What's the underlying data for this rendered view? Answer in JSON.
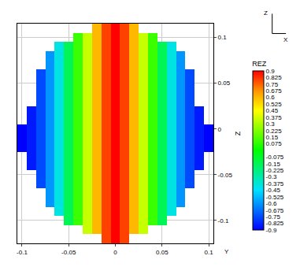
{
  "chart_data": {
    "type": "heatmap",
    "x": [
      -0.1,
      -0.09,
      -0.08,
      -0.07,
      -0.06,
      -0.05,
      -0.04,
      -0.03,
      -0.02,
      -0.01,
      0,
      0.01,
      0.02,
      0.03,
      0.04,
      0.05,
      0.06,
      0.07,
      0.08,
      0.09,
      0.1
    ],
    "y": [
      -0.12,
      -0.11,
      -0.1,
      -0.09,
      -0.08,
      -0.07,
      -0.06,
      -0.05,
      -0.04,
      -0.03,
      -0.02,
      -0.01,
      0,
      0.01,
      0.02,
      0.03,
      0.04,
      0.05,
      0.06,
      0.07,
      0.08,
      0.09,
      0.1,
      0.11
    ],
    "z": [
      [
        null,
        null,
        null,
        null,
        null,
        null,
        null,
        null,
        null,
        0.8,
        0.9,
        0.8,
        null,
        null,
        null,
        null,
        null,
        null,
        null,
        null,
        null
      ],
      [
        null,
        null,
        null,
        null,
        null,
        null,
        null,
        0.35,
        0.6,
        0.8,
        0.9,
        0.8,
        0.6,
        0.35,
        null,
        null,
        null,
        null,
        null,
        null,
        null
      ],
      [
        null,
        null,
        null,
        null,
        null,
        -0.15,
        0.1,
        0.35,
        0.6,
        0.8,
        0.9,
        0.8,
        0.6,
        0.35,
        0.1,
        -0.15,
        null,
        null,
        null,
        null,
        null
      ],
      [
        null,
        null,
        null,
        null,
        -0.4,
        -0.15,
        0.1,
        0.35,
        0.6,
        0.8,
        0.9,
        0.8,
        0.6,
        0.35,
        0.1,
        -0.15,
        -0.4,
        null,
        null,
        null,
        null
      ],
      [
        null,
        null,
        null,
        -0.6,
        -0.4,
        -0.15,
        0.1,
        0.35,
        0.6,
        0.8,
        0.9,
        0.8,
        0.6,
        0.35,
        0.1,
        -0.15,
        -0.4,
        -0.6,
        null,
        null,
        null
      ],
      [
        null,
        null,
        null,
        -0.6,
        -0.4,
        -0.15,
        0.1,
        0.35,
        0.6,
        0.8,
        0.9,
        0.8,
        0.6,
        0.35,
        0.1,
        -0.15,
        -0.4,
        -0.6,
        null,
        null,
        null
      ],
      [
        null,
        null,
        -0.75,
        -0.6,
        -0.4,
        -0.15,
        0.1,
        0.35,
        0.6,
        0.8,
        0.9,
        0.8,
        0.6,
        0.35,
        0.1,
        -0.15,
        -0.4,
        -0.6,
        -0.75,
        null,
        null
      ],
      [
        null,
        null,
        -0.75,
        -0.6,
        -0.4,
        -0.15,
        0.1,
        0.35,
        0.6,
        0.8,
        0.9,
        0.8,
        0.6,
        0.35,
        0.1,
        -0.15,
        -0.4,
        -0.6,
        -0.75,
        null,
        null
      ],
      [
        null,
        -0.85,
        -0.75,
        -0.6,
        -0.4,
        -0.15,
        0.1,
        0.35,
        0.6,
        0.8,
        0.9,
        0.8,
        0.6,
        0.35,
        0.1,
        -0.15,
        -0.4,
        -0.6,
        -0.75,
        -0.85,
        null
      ],
      [
        null,
        -0.85,
        -0.75,
        -0.6,
        -0.4,
        -0.15,
        0.1,
        0.35,
        0.6,
        0.8,
        0.9,
        0.8,
        0.6,
        0.35,
        0.1,
        -0.15,
        -0.4,
        -0.6,
        -0.75,
        -0.85,
        null
      ],
      [
        -0.9,
        -0.85,
        -0.75,
        -0.6,
        -0.4,
        -0.15,
        0.1,
        0.35,
        0.6,
        0.8,
        0.9,
        0.8,
        0.6,
        0.35,
        0.1,
        -0.15,
        -0.4,
        -0.6,
        -0.75,
        -0.85,
        -0.9
      ],
      [
        -0.9,
        -0.85,
        -0.75,
        -0.6,
        -0.4,
        -0.15,
        0.1,
        0.35,
        0.6,
        0.8,
        0.9,
        0.8,
        0.6,
        0.35,
        0.1,
        -0.15,
        -0.4,
        -0.6,
        -0.75,
        -0.85,
        -0.9
      ],
      [
        -0.9,
        -0.85,
        -0.75,
        -0.6,
        -0.4,
        -0.15,
        0.1,
        0.35,
        0.6,
        0.8,
        0.9,
        0.8,
        0.6,
        0.35,
        0.1,
        -0.15,
        -0.4,
        -0.6,
        -0.75,
        -0.85,
        -0.9
      ],
      [
        null,
        -0.85,
        -0.75,
        -0.6,
        -0.4,
        -0.15,
        0.1,
        0.35,
        0.6,
        0.8,
        0.9,
        0.8,
        0.6,
        0.35,
        0.1,
        -0.15,
        -0.4,
        -0.6,
        -0.75,
        -0.85,
        null
      ],
      [
        null,
        -0.85,
        -0.75,
        -0.6,
        -0.4,
        -0.15,
        0.1,
        0.35,
        0.6,
        0.8,
        0.9,
        0.8,
        0.6,
        0.35,
        0.1,
        -0.15,
        -0.4,
        -0.6,
        -0.75,
        -0.85,
        null
      ],
      [
        null,
        null,
        -0.75,
        -0.6,
        -0.4,
        -0.15,
        0.1,
        0.35,
        0.6,
        0.8,
        0.9,
        0.8,
        0.6,
        0.35,
        0.1,
        -0.15,
        -0.4,
        -0.6,
        -0.75,
        null,
        null
      ],
      [
        null,
        null,
        -0.75,
        -0.6,
        -0.4,
        -0.15,
        0.1,
        0.35,
        0.6,
        0.8,
        0.9,
        0.8,
        0.6,
        0.35,
        0.1,
        -0.15,
        -0.4,
        -0.6,
        -0.75,
        null,
        null
      ],
      [
        null,
        null,
        -0.75,
        -0.6,
        -0.4,
        -0.15,
        0.1,
        0.35,
        0.6,
        0.8,
        0.9,
        0.8,
        0.6,
        0.35,
        0.1,
        -0.15,
        -0.4,
        -0.6,
        -0.75,
        null,
        null
      ],
      [
        null,
        null,
        -0.75,
        -0.6,
        -0.4,
        -0.15,
        0.1,
        0.35,
        0.6,
        0.8,
        0.9,
        0.8,
        0.6,
        0.35,
        0.1,
        -0.15,
        -0.4,
        -0.6,
        -0.75,
        null,
        null
      ],
      [
        null,
        null,
        null,
        -0.6,
        -0.4,
        -0.15,
        0.1,
        0.35,
        0.6,
        0.8,
        0.9,
        0.8,
        0.6,
        0.35,
        0.1,
        -0.15,
        -0.4,
        -0.6,
        null,
        null,
        null
      ],
      [
        null,
        null,
        null,
        -0.6,
        -0.4,
        -0.15,
        0.1,
        0.35,
        0.6,
        0.8,
        0.9,
        0.8,
        0.6,
        0.35,
        0.1,
        -0.15,
        -0.4,
        -0.6,
        null,
        null,
        null
      ],
      [
        null,
        null,
        null,
        null,
        -0.4,
        -0.15,
        0.1,
        0.35,
        0.6,
        0.8,
        0.9,
        0.8,
        0.6,
        0.35,
        0.1,
        -0.15,
        -0.4,
        null,
        null,
        null,
        null
      ],
      [
        null,
        null,
        null,
        null,
        null,
        null,
        0.1,
        0.35,
        0.6,
        0.8,
        0.9,
        0.8,
        0.6,
        0.35,
        0.1,
        null,
        null,
        null,
        null,
        null,
        null
      ],
      [
        null,
        null,
        null,
        null,
        null,
        null,
        null,
        null,
        0.6,
        0.8,
        0.9,
        0.8,
        0.6,
        null,
        null,
        null,
        null,
        null,
        null,
        null,
        null
      ]
    ],
    "colorbar_title": "REZ",
    "color_range": [
      -0.9,
      0.9
    ],
    "color_ticks": [
      0.9,
      0.825,
      0.75,
      0.675,
      0.6,
      0.525,
      0.45,
      0.375,
      0.3,
      0.225,
      0.15,
      0.075,
      -0.075,
      -0.15,
      -0.225,
      -0.3,
      -0.375,
      -0.45,
      -0.525,
      -0.6,
      -0.675,
      -0.75,
      -0.825,
      -0.9
    ],
    "xlim": [
      -0.105,
      0.105
    ],
    "ylim": [
      -0.125,
      0.115
    ],
    "xticks": [
      -0.1,
      -0.05,
      0,
      0.05,
      0.1
    ],
    "yticks": [
      0.1,
      0.05,
      0,
      -0.05,
      -0.1
    ],
    "y_label": "Z",
    "grid": true,
    "annotations": [
      {
        "text": "Z"
      },
      {
        "text": "X"
      },
      {
        "text": "Y"
      }
    ]
  }
}
